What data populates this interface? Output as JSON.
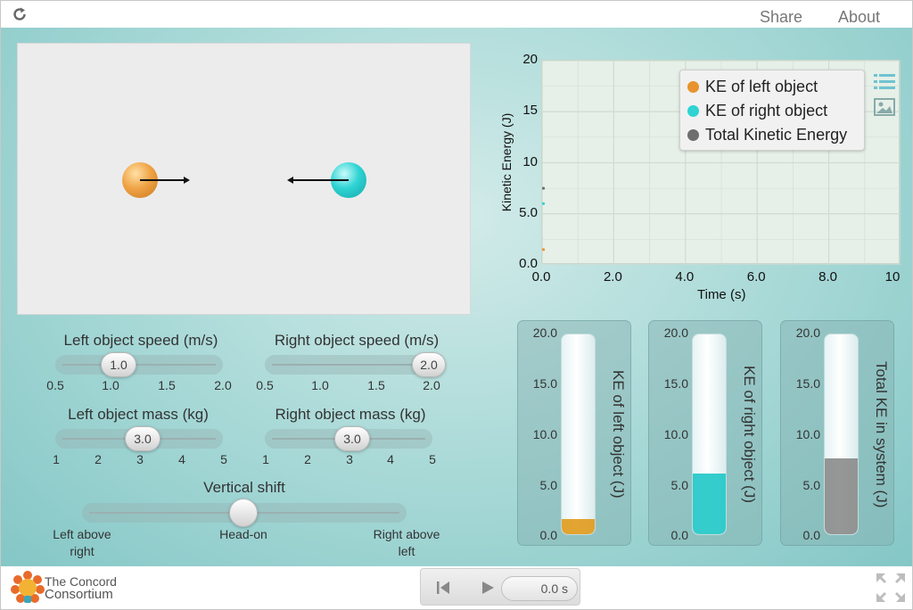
{
  "topbar": {
    "share_label": "Share",
    "about_label": "About"
  },
  "controls": {
    "left_speed": {
      "title": "Left object speed (m/s)",
      "value_label": "1.0",
      "value": 1.0,
      "ticks": [
        "0.5",
        "1.0",
        "1.5",
        "2.0"
      ]
    },
    "right_speed": {
      "title": "Right object speed (m/s)",
      "value_label": "2.0",
      "value": 2.0,
      "ticks": [
        "0.5",
        "1.0",
        "1.5",
        "2.0"
      ]
    },
    "left_mass": {
      "title": "Left object mass (kg)",
      "value_label": "3.0",
      "value": 3.0,
      "ticks": [
        "1",
        "2",
        "3",
        "4",
        "5"
      ]
    },
    "right_mass": {
      "title": "Right object mass (kg)",
      "value_label": "3.0",
      "value": 3.0,
      "ticks": [
        "1",
        "2",
        "3",
        "4",
        "5"
      ]
    },
    "vertical_shift": {
      "title": "Vertical shift",
      "left_label_1": "Left above",
      "left_label_2": "right",
      "center_label": "Head-on",
      "right_label_1": "Right above",
      "right_label_2": "left"
    }
  },
  "chart_data": {
    "type": "line",
    "xlabel": "Time (s)",
    "ylabel": "Kinetic Energy (J)",
    "xlim": [
      0,
      10
    ],
    "ylim": [
      0,
      20
    ],
    "x_ticks": [
      "0.0",
      "2.0",
      "4.0",
      "6.0",
      "8.0",
      "10"
    ],
    "y_ticks": [
      "0.0",
      "5.0",
      "10",
      "15",
      "20"
    ],
    "grid": true,
    "legend_position": "top-right",
    "series": [
      {
        "name": "KE of left object",
        "color": "#e8932d",
        "x": [
          0
        ],
        "y": [
          1.5
        ]
      },
      {
        "name": "KE of right object",
        "color": "#2fd3d3",
        "x": [
          0
        ],
        "y": [
          6.0
        ]
      },
      {
        "name": "Total Kinetic Energy",
        "color": "#6e6e6e",
        "x": [
          0
        ],
        "y": [
          7.5
        ]
      }
    ]
  },
  "bar_graphs": {
    "ticks": [
      "20.0",
      "15.0",
      "10.0",
      "5.0",
      "0.0"
    ],
    "max": 20,
    "items": [
      {
        "label": "KE of left object (J)",
        "value": 1.5,
        "color": "#e09a1b"
      },
      {
        "label": "KE of right object (J)",
        "value": 6.0,
        "color": "#1fc7c7"
      },
      {
        "label": "Total KE in system (J)",
        "value": 7.5,
        "color": "#8a8a8a"
      }
    ]
  },
  "bottombar": {
    "logo_line1": "The Concord",
    "logo_line2": "Consortium",
    "time_display": "0.0 s"
  },
  "icons": {
    "reload": "reload-icon",
    "legend": "legend-list-icon",
    "image": "image-icon",
    "rewind": "step-back-icon",
    "play": "play-icon",
    "fullscreen": "fullscreen-icon"
  }
}
